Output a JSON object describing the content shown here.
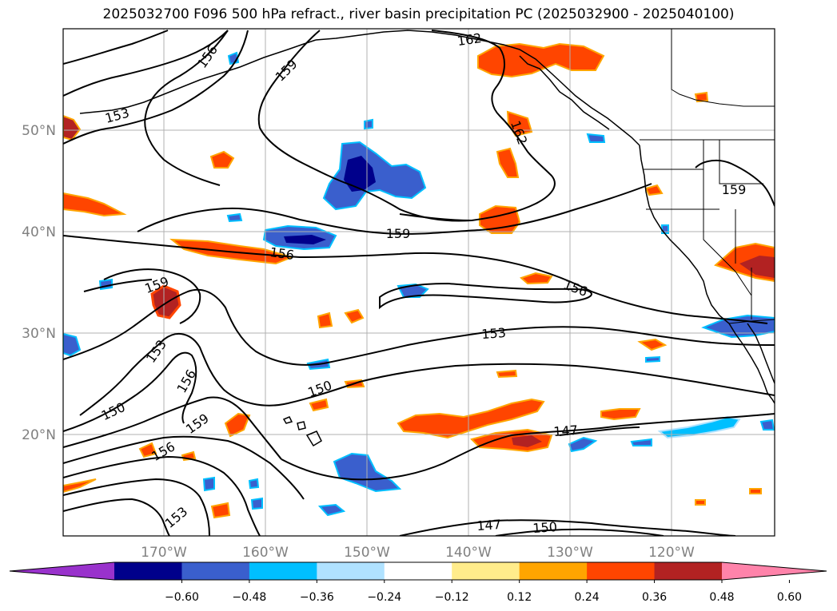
{
  "title": "2025032700 F096 500 hPa refract., river basin precipitation PC (2025032900 - 2025040100)",
  "lat_labels": [
    "50°N",
    "40°N",
    "30°N",
    "20°N"
  ],
  "lon_labels": [
    "170°W",
    "160°W",
    "150°W",
    "140°W",
    "130°W",
    "120°W"
  ],
  "contour_labels": [
    "162",
    "156",
    "159",
    "153",
    "162",
    "159",
    "159",
    "156",
    "159",
    "156",
    "153",
    "153",
    "156",
    "150",
    "150",
    "159",
    "156",
    "147",
    "153",
    "147",
    "150"
  ],
  "colorbar": {
    "colors": [
      "#9932cc",
      "#00008b",
      "#3a5fcd",
      "#00bfff",
      "#b0e2ff",
      "#ffffff",
      "#ffec8b",
      "#ffa500",
      "#ff4500",
      "#b22222",
      "#ff83aa"
    ],
    "tick_labels": [
      "−0.60",
      "−0.48",
      "−0.36",
      "−0.24",
      "−0.12",
      "0.12",
      "0.24",
      "0.36",
      "0.48",
      "0.60"
    ]
  }
}
